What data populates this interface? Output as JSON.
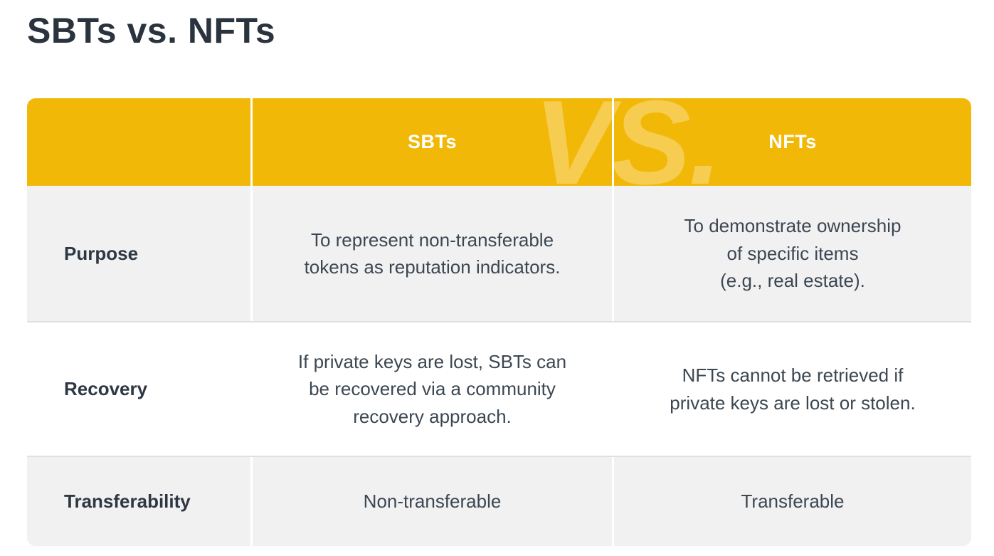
{
  "page": {
    "title": "SBTs vs. NFTs"
  },
  "table": {
    "watermark": "VS.",
    "columns": [
      {
        "label": ""
      },
      {
        "label": "SBTs"
      },
      {
        "label": "NFTs"
      }
    ],
    "rows": [
      {
        "label": "Purpose",
        "sbt": "To represent non-transferable\ntokens as reputation indicators.",
        "nft": "To demonstrate ownership\nof specific items\n(e.g., real estate)."
      },
      {
        "label": "Recovery",
        "sbt": "If private keys are lost, SBTs can\nbe recovered via a community\nrecovery approach.",
        "nft": "NFTs cannot be retrieved if\nprivate keys are lost or stolen."
      },
      {
        "label": "Transferability",
        "sbt": "Non-transferable",
        "nft": "Transferable"
      }
    ]
  },
  "colors": {
    "header_bg": "#F2B807",
    "watermark_tint": "rgba(255,255,255,0.30)",
    "row_alt_bg": "#F1F1F2",
    "row_bg": "#FFFFFF",
    "row_separator": "#DDE1E5",
    "header_text": "#FFFFFF",
    "body_text": "#3C4752",
    "label_text": "#2D3843",
    "title_text": "#2B333E"
  }
}
